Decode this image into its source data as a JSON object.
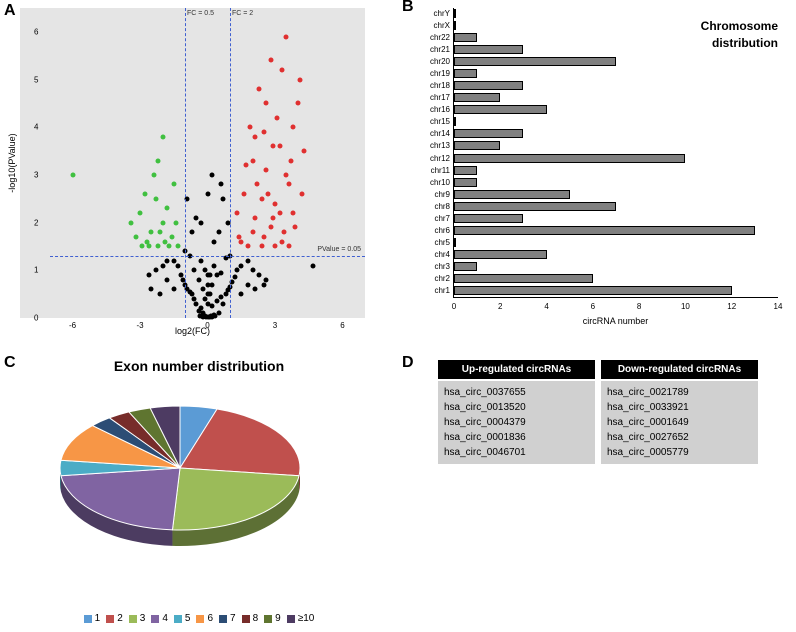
{
  "panelA": {
    "label": "A",
    "ylabel": "-log10(PValue)",
    "xlabel": "log2(FC)",
    "xlim": [
      -7,
      7
    ],
    "ylim": [
      0,
      6.5
    ],
    "xticks": [
      -6,
      -3,
      0,
      3,
      6
    ],
    "yticks": [
      0,
      1,
      2,
      3,
      4,
      5,
      6
    ],
    "hline_y": 1.3,
    "hline_label": "PValue = 0.05",
    "vline1_x": -1,
    "vline1_label": "FC = 0.5",
    "vline2_x": 1,
    "vline2_label": "FC = 2",
    "colors": {
      "up": "#e03030",
      "down": "#40c040",
      "ns": "#000000",
      "bg": "#e5e5e5"
    },
    "up_points": [
      [
        1.5,
        1.6
      ],
      [
        1.8,
        1.5
      ],
      [
        2.1,
        2.1
      ],
      [
        2.0,
        1.8
      ],
      [
        1.3,
        2.2
      ],
      [
        2.4,
        2.5
      ],
      [
        2.8,
        1.9
      ],
      [
        2.2,
        2.8
      ],
      [
        2.6,
        3.1
      ],
      [
        3.0,
        2.4
      ],
      [
        2.5,
        1.7
      ],
      [
        3.2,
        2.2
      ],
      [
        3.5,
        3.0
      ],
      [
        3.1,
        4.2
      ],
      [
        2.9,
        3.6
      ],
      [
        3.4,
        1.8
      ],
      [
        2.7,
        2.6
      ],
      [
        3.6,
        2.8
      ],
      [
        3.8,
        4.0
      ],
      [
        3.3,
        1.6
      ],
      [
        4.0,
        4.5
      ],
      [
        3.7,
        3.3
      ],
      [
        4.2,
        2.6
      ],
      [
        3.9,
        1.9
      ],
      [
        4.3,
        3.5
      ],
      [
        4.1,
        5.0
      ],
      [
        3.5,
        5.9
      ],
      [
        2.3,
        4.8
      ],
      [
        2.0,
        3.3
      ],
      [
        2.8,
        5.4
      ],
      [
        1.6,
        2.6
      ],
      [
        1.9,
        4.0
      ],
      [
        2.4,
        1.5
      ],
      [
        3.0,
        1.5
      ],
      [
        3.6,
        1.5
      ],
      [
        2.1,
        3.8
      ],
      [
        2.6,
        4.5
      ],
      [
        3.3,
        5.2
      ],
      [
        1.4,
        1.7
      ],
      [
        1.7,
        3.2
      ],
      [
        2.5,
        3.9
      ],
      [
        2.9,
        2.1
      ],
      [
        3.2,
        3.6
      ],
      [
        3.8,
        2.2
      ]
    ],
    "down_points": [
      [
        -1.3,
        1.5
      ],
      [
        -1.6,
        1.7
      ],
      [
        -1.9,
        1.6
      ],
      [
        -2.2,
        1.5
      ],
      [
        -2.0,
        2.0
      ],
      [
        -1.8,
        2.3
      ],
      [
        -2.5,
        1.8
      ],
      [
        -2.3,
        2.5
      ],
      [
        -2.7,
        1.6
      ],
      [
        -2.4,
        3.0
      ],
      [
        -2.9,
        1.5
      ],
      [
        -2.1,
        1.8
      ],
      [
        -3.0,
        2.2
      ],
      [
        -2.6,
        1.5
      ],
      [
        -1.5,
        2.8
      ],
      [
        -2.8,
        2.6
      ],
      [
        -3.2,
        1.7
      ],
      [
        -2.0,
        3.8
      ],
      [
        -1.7,
        1.5
      ],
      [
        -6.0,
        3.0
      ],
      [
        -1.4,
        2.0
      ],
      [
        -3.4,
        2.0
      ],
      [
        -2.2,
        3.3
      ]
    ],
    "ns_points": [
      [
        -0.1,
        0.05
      ],
      [
        0.1,
        0.03
      ],
      [
        -0.2,
        0.1
      ],
      [
        0.3,
        0.07
      ],
      [
        -0.4,
        0.15
      ],
      [
        0.5,
        0.1
      ],
      [
        -0.3,
        0.2
      ],
      [
        0.2,
        0.25
      ],
      [
        -0.5,
        0.3
      ],
      [
        0.4,
        0.35
      ],
      [
        -0.6,
        0.4
      ],
      [
        0.7,
        0.3
      ],
      [
        -0.7,
        0.5
      ],
      [
        0.6,
        0.45
      ],
      [
        -0.8,
        0.55
      ],
      [
        0.8,
        0.5
      ],
      [
        -0.9,
        0.6
      ],
      [
        0.9,
        0.58
      ],
      [
        -1.0,
        0.7
      ],
      [
        1.0,
        0.65
      ],
      [
        -1.1,
        0.8
      ],
      [
        1.1,
        0.75
      ],
      [
        -1.2,
        0.9
      ],
      [
        1.2,
        0.85
      ],
      [
        -0.2,
        0.6
      ],
      [
        0.2,
        0.7
      ],
      [
        -0.4,
        0.8
      ],
      [
        0.4,
        0.9
      ],
      [
        -0.6,
        1.0
      ],
      [
        0.6,
        0.95
      ],
      [
        -1.3,
        1.1
      ],
      [
        1.3,
        1.0
      ],
      [
        -0.1,
        0.4
      ],
      [
        0.1,
        0.5
      ],
      [
        -0.3,
        1.2
      ],
      [
        0.3,
        1.1
      ],
      [
        -1.5,
        1.2
      ],
      [
        1.5,
        1.1
      ],
      [
        -0.8,
        1.3
      ],
      [
        0.8,
        1.25
      ],
      [
        -1.0,
        1.4
      ],
      [
        1.0,
        1.3
      ],
      [
        0.0,
        0.02
      ],
      [
        0.05,
        0.02
      ],
      [
        -0.05,
        0.02
      ],
      [
        -0.15,
        0.05
      ],
      [
        0.15,
        0.05
      ],
      [
        -1.8,
        1.2
      ],
      [
        1.8,
        1.2
      ],
      [
        -2.0,
        1.1
      ],
      [
        2.0,
        1.0
      ],
      [
        -2.3,
        1.0
      ],
      [
        2.3,
        0.9
      ],
      [
        -0.1,
        1.0
      ],
      [
        0.1,
        0.9
      ],
      [
        -2.6,
        0.9
      ],
      [
        2.6,
        0.8
      ],
      [
        4.7,
        1.1
      ],
      [
        0.0,
        0.3
      ],
      [
        0.0,
        0.5
      ],
      [
        0.0,
        0.7
      ],
      [
        0.0,
        0.9
      ],
      [
        -0.2,
        0.02
      ],
      [
        0.2,
        0.02
      ],
      [
        -0.35,
        0.04
      ],
      [
        0.35,
        0.04
      ],
      [
        0.5,
        1.8
      ],
      [
        -0.5,
        2.1
      ],
      [
        0.7,
        2.5
      ],
      [
        -0.7,
        1.8
      ],
      [
        0.3,
        1.6
      ],
      [
        -0.3,
        2.0
      ],
      [
        0.0,
        2.6
      ],
      [
        0.2,
        3.0
      ],
      [
        -0.9,
        2.5
      ],
      [
        0.9,
        2.0
      ],
      [
        0.6,
        2.8
      ],
      [
        1.5,
        0.5
      ],
      [
        -1.5,
        0.6
      ],
      [
        1.8,
        0.7
      ],
      [
        -1.8,
        0.8
      ],
      [
        2.1,
        0.6
      ],
      [
        -2.1,
        0.5
      ],
      [
        2.5,
        0.7
      ],
      [
        -2.5,
        0.6
      ]
    ]
  },
  "panelB": {
    "label": "B",
    "title_line1": "Chromosome",
    "title_line2": "distribution",
    "xlabel": "circRNA number",
    "xlim": [
      0,
      14
    ],
    "xtick_step": 2,
    "bar_color": "#808080",
    "chromosomes": [
      "chrY",
      "chrX",
      "chr22",
      "chr21",
      "chr20",
      "chr19",
      "chr18",
      "chr17",
      "chr16",
      "chr15",
      "chr14",
      "chr13",
      "chr12",
      "chr11",
      "chr10",
      "chr9",
      "chr8",
      "chr7",
      "chr6",
      "chr5",
      "chr4",
      "chr3",
      "chr2",
      "chr1"
    ],
    "values": [
      0,
      0,
      1,
      3,
      7,
      1,
      3,
      2,
      4,
      0,
      3,
      2,
      10,
      1,
      1,
      5,
      7,
      3,
      13,
      0,
      4,
      1,
      6,
      12
    ]
  },
  "panelC": {
    "label": "C",
    "title": "Exon number distribution",
    "slices": [
      {
        "label": "1",
        "color": "#5b9bd5",
        "value": 5
      },
      {
        "label": "2",
        "color": "#c0504d",
        "value": 22
      },
      {
        "label": "3",
        "color": "#9bbb59",
        "value": 24
      },
      {
        "label": "4",
        "color": "#8064a2",
        "value": 22
      },
      {
        "label": "5",
        "color": "#4bacc6",
        "value": 4
      },
      {
        "label": "6",
        "color": "#f79646",
        "value": 10
      },
      {
        "label": "7",
        "color": "#2c4d75",
        "value": 3
      },
      {
        "label": "8",
        "color": "#772c2a",
        "value": 3
      },
      {
        "label": "9",
        "color": "#5f7530",
        "value": 3
      },
      {
        "label": "≥10",
        "color": "#4d3b62",
        "value": 4
      }
    ]
  },
  "panelD": {
    "label": "D",
    "header_up": "Up-regulated circRNAs",
    "header_down": "Down-regulated circRNAs",
    "up": [
      "hsa_circ_0037655",
      "hsa_circ_0013520",
      "hsa_circ_0004379",
      "hsa_circ_0001836",
      "hsa_circ_0046701"
    ],
    "down": [
      "hsa_circ_0021789",
      "hsa_circ_0033921",
      "hsa_circ_0001649",
      "hsa_circ_0027652",
      "hsa_circ_0005779"
    ]
  }
}
